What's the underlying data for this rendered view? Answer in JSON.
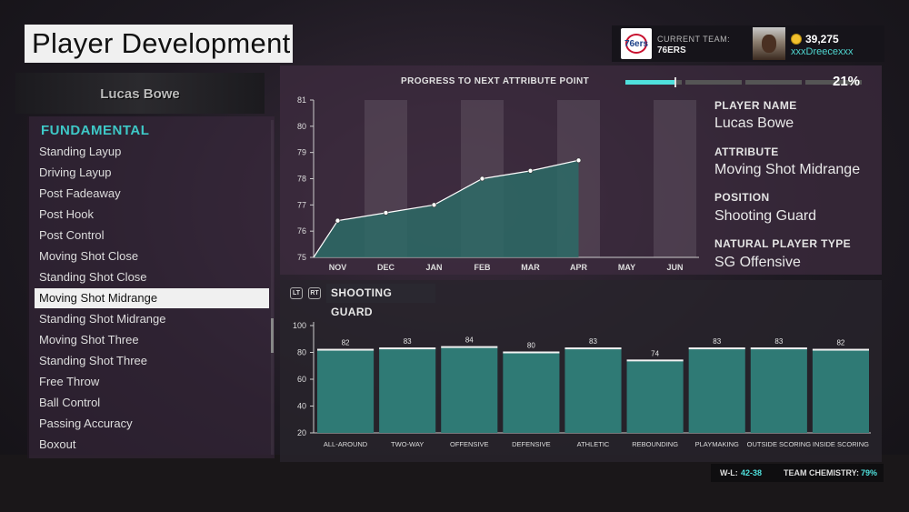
{
  "header": {
    "title": "Player Development"
  },
  "team_panel": {
    "current_team_label": "CURRENT TEAM:",
    "team_name": "76ERS",
    "logo_text": "76ers",
    "vc_amount": "39,275",
    "gamertag": "xxxDreecexxx"
  },
  "player_banner": {
    "name": "Lucas Bowe"
  },
  "attribute_list": {
    "category": "FUNDAMENTAL",
    "selected_index": 7,
    "items": [
      "Standing Layup",
      "Driving Layup",
      "Post Fadeaway",
      "Post Hook",
      "Post Control",
      "Moving Shot Close",
      "Standing Shot Close",
      "Moving Shot Midrange",
      "Standing Shot Midrange",
      "Moving Shot Three",
      "Standing Shot Three",
      "Free Throw",
      "Ball Control",
      "Passing Accuracy",
      "Boxout"
    ]
  },
  "progress": {
    "title": "PROGRESS TO NEXT ATTRIBUTE POINT",
    "percent_label": "21%",
    "percent": 0.21
  },
  "player_info": {
    "player_name_label": "PLAYER NAME",
    "player_name": "Lucas Bowe",
    "attribute_label": "ATTRIBUTE",
    "attribute": "Moving Shot Midrange",
    "position_label": "POSITION",
    "position": "Shooting Guard",
    "type_label": "NATURAL PLAYER TYPE",
    "type": "SG Offensive"
  },
  "stats_section": {
    "lt_label": "LT",
    "rt_label": "RT",
    "title": "SHOOTING GUARD"
  },
  "footer": {
    "wl_label": "W-L:",
    "wl_value": "42-38",
    "chemistry_label": "TEAM CHEMISTRY:",
    "chemistry_value": "79%"
  },
  "colors": {
    "accent": "#4fe0dc",
    "bar_fill": "#2f7a75",
    "area_fill": "#2d6b66",
    "line": "#ffffff"
  },
  "chart_data": [
    {
      "type": "area",
      "categories": [
        "NOV",
        "DEC",
        "JAN",
        "FEB",
        "MAR",
        "APR",
        "MAY",
        "JUN"
      ],
      "values": [
        76.4,
        76.7,
        77.0,
        78.0,
        78.3,
        78.7,
        null,
        null
      ],
      "start_value": 75.0,
      "ylim": [
        75,
        81
      ],
      "yticks": [
        "75",
        "76",
        "77",
        "78",
        "79",
        "80",
        "81"
      ],
      "title": "",
      "xlabel": "",
      "ylabel": ""
    },
    {
      "type": "bar",
      "categories": [
        "ALL-AROUND",
        "TWO-WAY",
        "OFFENSIVE",
        "DEFENSIVE",
        "ATHLETIC",
        "REBOUNDING",
        "PLAYMAKING",
        "OUTSIDE SCORING",
        "INSIDE SCORING"
      ],
      "values": [
        82,
        83,
        84,
        80,
        83,
        74,
        83,
        83,
        82
      ],
      "ylim": [
        20,
        100
      ],
      "yticks": [
        "20",
        "40",
        "60",
        "80",
        "100"
      ],
      "title": "",
      "xlabel": "",
      "ylabel": ""
    }
  ]
}
